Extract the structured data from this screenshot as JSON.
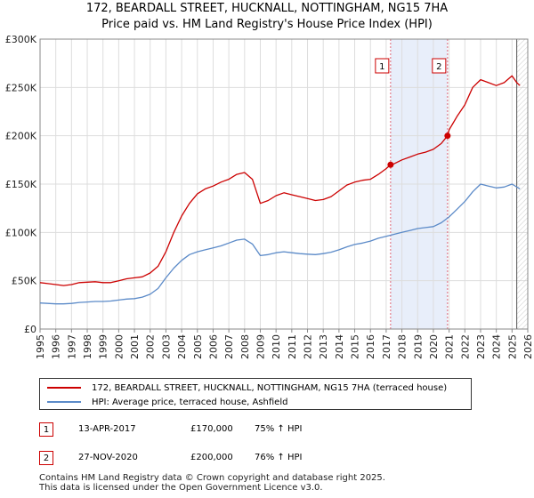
{
  "header": {
    "title": "172, BEARDALL STREET, HUCKNALL, NOTTINGHAM, NG15 7HA",
    "subtitle": "Price paid vs. HM Land Registry's House Price Index (HPI)"
  },
  "colors": {
    "price_line": "#cc0000",
    "hpi_line": "#5b8ac8",
    "shade": "#e8eefa",
    "sale_vline": "#dd6677",
    "future_vline": "#555555",
    "grid": "#dddddd"
  },
  "chart_data": {
    "type": "line",
    "xlim": [
      1995,
      2026
    ],
    "ylim": [
      0,
      300000
    ],
    "y_ticks": [
      0,
      50000,
      100000,
      150000,
      200000,
      250000,
      300000
    ],
    "y_tick_labels": [
      "£0",
      "£50K",
      "£100K",
      "£150K",
      "£200K",
      "£250K",
      "£300K"
    ],
    "x_ticks": [
      1995,
      1996,
      1997,
      1998,
      1999,
      2000,
      2001,
      2002,
      2003,
      2004,
      2005,
      2006,
      2007,
      2008,
      2009,
      2010,
      2011,
      2012,
      2013,
      2014,
      2015,
      2016,
      2017,
      2018,
      2019,
      2020,
      2021,
      2022,
      2023,
      2024,
      2025,
      2026
    ],
    "x_tick_labels": [
      "1995",
      "1996",
      "1997",
      "1998",
      "1999",
      "2000",
      "2001",
      "2002",
      "2003",
      "2004",
      "2005",
      "2006",
      "2007",
      "2008",
      "2009",
      "2010",
      "2011",
      "2012",
      "2013",
      "2014",
      "2015",
      "2016",
      "2017",
      "2018",
      "2019",
      "2020",
      "2021",
      "2022",
      "2023",
      "2024",
      "2025",
      "2026"
    ],
    "grid": true,
    "series": [
      {
        "name": "172, BEARDALL STREET, HUCKNALL, NOTTINGHAM, NG15 7HA (terraced house)",
        "color": "#cc0000",
        "x": [
          1995.0,
          1995.5,
          1996.0,
          1996.5,
          1997.0,
          1997.5,
          1998.0,
          1998.5,
          1999.0,
          1999.5,
          2000.0,
          2000.5,
          2001.0,
          2001.5,
          2002.0,
          2002.5,
          2003.0,
          2003.5,
          2004.0,
          2004.5,
          2005.0,
          2005.5,
          2006.0,
          2006.5,
          2007.0,
          2007.5,
          2008.0,
          2008.5,
          2009.0,
          2009.5,
          2010.0,
          2010.5,
          2011.0,
          2011.5,
          2012.0,
          2012.5,
          2013.0,
          2013.5,
          2014.0,
          2014.5,
          2015.0,
          2015.5,
          2016.0,
          2016.5,
          2017.0,
          2017.28,
          2017.5,
          2018.0,
          2018.5,
          2019.0,
          2019.5,
          2020.0,
          2020.5,
          2020.9,
          2021.0,
          2021.5,
          2022.0,
          2022.5,
          2023.0,
          2023.5,
          2024.0,
          2024.5,
          2025.0,
          2025.3,
          2025.5
        ],
        "values": [
          48000,
          47000,
          46000,
          45000,
          46000,
          48000,
          48500,
          49000,
          48000,
          48000,
          50000,
          52000,
          53000,
          54000,
          58000,
          65000,
          80000,
          100000,
          117000,
          130000,
          140000,
          145000,
          148000,
          152000,
          155000,
          160000,
          162000,
          155000,
          130000,
          133000,
          138000,
          141000,
          139000,
          137000,
          135000,
          133000,
          134000,
          137000,
          143000,
          149000,
          152000,
          154000,
          155000,
          160000,
          166000,
          170000,
          171000,
          175000,
          178000,
          181000,
          183000,
          186000,
          192000,
          200000,
          206000,
          220000,
          232000,
          250000,
          258000,
          255000,
          252000,
          255000,
          262000,
          255000,
          252000
        ]
      },
      {
        "name": "HPI: Average price, terraced house, Ashfield",
        "color": "#5b8ac8",
        "x": [
          1995.0,
          1995.5,
          1996.0,
          1996.5,
          1997.0,
          1997.5,
          1998.0,
          1998.5,
          1999.0,
          1999.5,
          2000.0,
          2000.5,
          2001.0,
          2001.5,
          2002.0,
          2002.5,
          2003.0,
          2003.5,
          2004.0,
          2004.5,
          2005.0,
          2005.5,
          2006.0,
          2006.5,
          2007.0,
          2007.5,
          2008.0,
          2008.5,
          2009.0,
          2009.5,
          2010.0,
          2010.5,
          2011.0,
          2011.5,
          2012.0,
          2012.5,
          2013.0,
          2013.5,
          2014.0,
          2014.5,
          2015.0,
          2015.5,
          2016.0,
          2016.5,
          2017.0,
          2017.5,
          2018.0,
          2018.5,
          2019.0,
          2019.5,
          2020.0,
          2020.5,
          2021.0,
          2021.5,
          2022.0,
          2022.5,
          2023.0,
          2023.5,
          2024.0,
          2024.5,
          2025.0,
          2025.5
        ],
        "values": [
          27000,
          26500,
          26000,
          26000,
          26500,
          27500,
          28000,
          28500,
          28500,
          29000,
          30000,
          31000,
          31500,
          33000,
          36000,
          42000,
          53000,
          63000,
          71000,
          77000,
          80000,
          82000,
          84000,
          86000,
          89000,
          92000,
          93000,
          88000,
          76000,
          77000,
          79000,
          80000,
          79000,
          78000,
          77500,
          77000,
          78000,
          79500,
          82000,
          85000,
          87500,
          89000,
          91000,
          94000,
          96000,
          98000,
          100000,
          102000,
          104000,
          105000,
          106000,
          110000,
          116000,
          124000,
          132000,
          142000,
          150000,
          148000,
          146000,
          147000,
          150000,
          145000
        ]
      }
    ],
    "sales": [
      {
        "marker": "1",
        "x": 2017.28,
        "y": 170000
      },
      {
        "marker": "2",
        "x": 2020.9,
        "y": 200000
      }
    ],
    "future_x": 2025.3
  },
  "legend": {
    "items": [
      "172, BEARDALL STREET, HUCKNALL, NOTTINGHAM, NG15 7HA (terraced house)",
      "HPI: Average price, terraced house, Ashfield"
    ]
  },
  "table": [
    {
      "marker": "1",
      "date": "13-APR-2017",
      "price": "£170,000",
      "hpi": "75% ↑ HPI"
    },
    {
      "marker": "2",
      "date": "27-NOV-2020",
      "price": "£200,000",
      "hpi": "76% ↑ HPI"
    }
  ],
  "footer": {
    "line1": "Contains HM Land Registry data © Crown copyright and database right 2025.",
    "line2": "This data is licensed under the Open Government Licence v3.0."
  }
}
